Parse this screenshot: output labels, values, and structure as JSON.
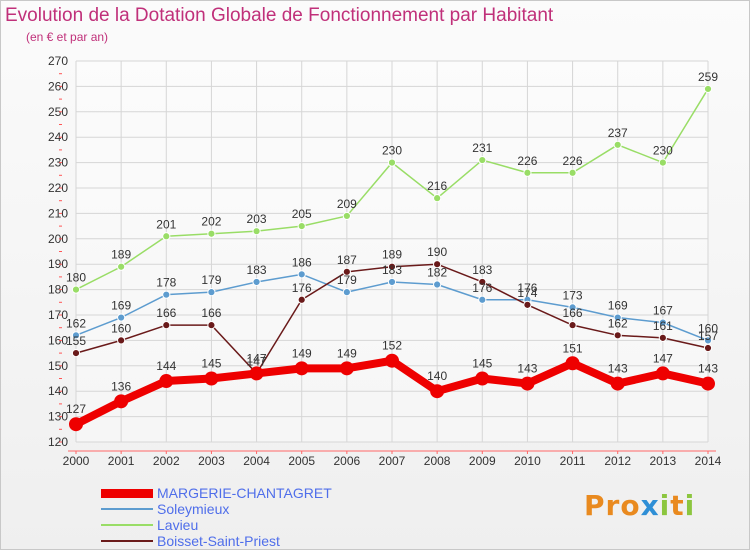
{
  "header": {
    "title": "Evolution de la Dotation Globale de Fonctionnement par Habitant",
    "subtitle": "(en € et par an)"
  },
  "branding": {
    "logo_text": "Proxiti",
    "letter_colors": [
      "#e98a1f",
      "#e98a1f",
      "#e98a1f",
      "#2f8fd6",
      "#8cc63f",
      "#e98a1f",
      "#8cc63f"
    ]
  },
  "chart_data": {
    "type": "line",
    "title": "Evolution de la Dotation Globale de Fonctionnement par Habitant",
    "subtitle": "(en € et par an)",
    "xlabel": "",
    "ylabel": "",
    "x": [
      "2000",
      "2001",
      "2002",
      "2003",
      "2004",
      "2005",
      "2006",
      "2007",
      "2008",
      "2009",
      "2010",
      "2011",
      "2012",
      "2013",
      "2014"
    ],
    "ylim": [
      120,
      270
    ],
    "yticks": [
      120,
      130,
      140,
      150,
      160,
      170,
      180,
      190,
      200,
      210,
      220,
      230,
      240,
      250,
      260,
      270
    ],
    "grid": true,
    "legend_position": "bottom-left",
    "series": [
      {
        "name": "MARGERIE-CHANTAGRET",
        "color": "#ee0000",
        "emphasis": true,
        "values": [
          127,
          136,
          144,
          145,
          147,
          149,
          149,
          152,
          140,
          145,
          143,
          151,
          143,
          147,
          143
        ]
      },
      {
        "name": "Soleymieux",
        "color": "#5d9ccf",
        "emphasis": false,
        "values": [
          162,
          169,
          178,
          179,
          183,
          186,
          179,
          183,
          182,
          176,
          176,
          173,
          169,
          167,
          160
        ]
      },
      {
        "name": "Lavieu",
        "color": "#99dd66",
        "emphasis": false,
        "values": [
          180,
          189,
          201,
          202,
          203,
          205,
          209,
          230,
          216,
          231,
          226,
          226,
          237,
          230,
          259
        ]
      },
      {
        "name": "Boisset-Saint-Priest",
        "color": "#6a1a1a",
        "emphasis": false,
        "values": [
          155,
          160,
          166,
          166,
          147,
          176,
          187,
          189,
          190,
          183,
          174,
          166,
          162,
          161,
          157
        ]
      }
    ]
  }
}
